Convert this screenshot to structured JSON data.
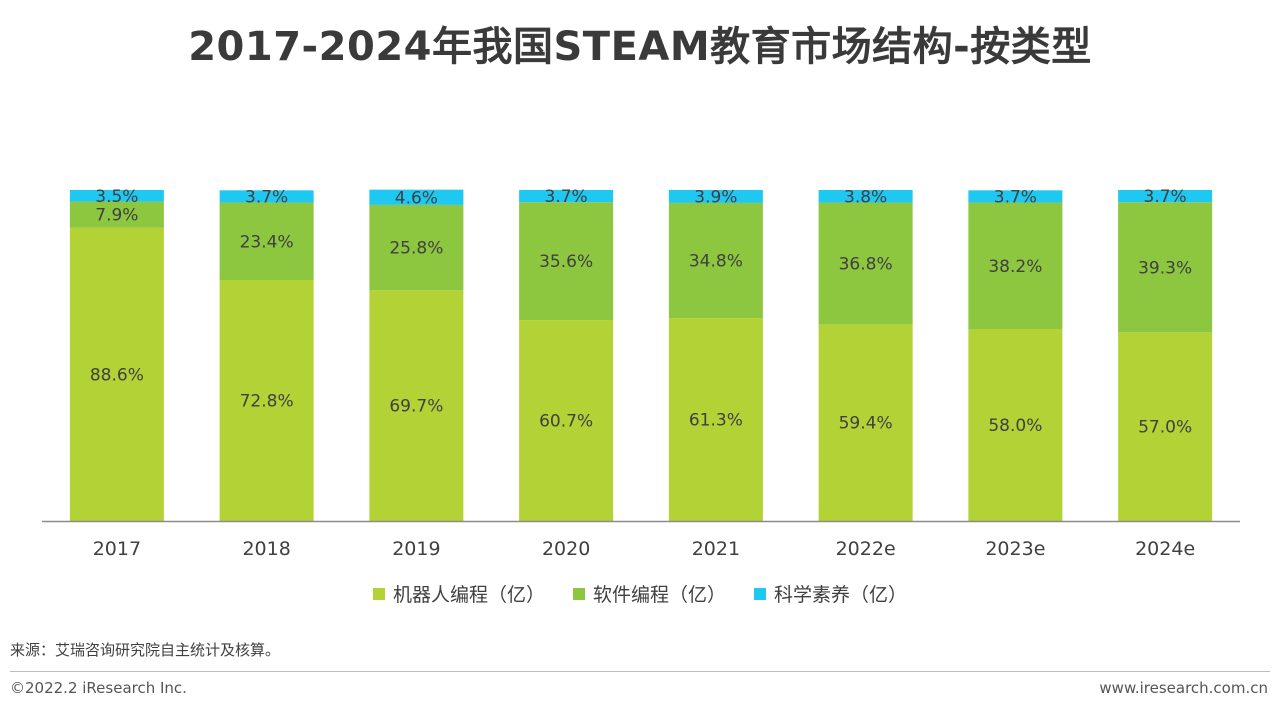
{
  "page": {
    "title": "2017-2024年我国STEAM教育市场结构-按类型",
    "source": "来源：艾瑞咨询研究院自主统计及核算。",
    "copyright": "©2022.2 iResearch Inc.",
    "website": "www.iresearch.com.cn"
  },
  "chart_data": {
    "type": "bar",
    "stacked": true,
    "percent_stacked": true,
    "title": "2017-2024年我国STEAM教育市场结构-按类型",
    "categories": [
      "2017",
      "2018",
      "2019",
      "2020",
      "2021",
      "2022e",
      "2023e",
      "2024e"
    ],
    "series": [
      {
        "name": "机器人编程（亿）",
        "color": "#b2d235",
        "values": [
          88.6,
          72.8,
          69.7,
          60.7,
          61.3,
          59.4,
          58.0,
          57.0
        ],
        "labels": [
          "88.6%",
          "72.8%",
          "69.7%",
          "60.7%",
          "61.3%",
          "59.4%",
          "58.0%",
          "57.0%"
        ]
      },
      {
        "name": "软件编程（亿）",
        "color": "#8dc63f",
        "values": [
          7.9,
          23.4,
          25.8,
          35.6,
          34.8,
          36.8,
          38.2,
          39.3
        ],
        "labels": [
          "7.9%",
          "23.4%",
          "25.8%",
          "35.6%",
          "34.8%",
          "36.8%",
          "38.2%",
          "39.3%"
        ]
      },
      {
        "name": "科学素养（亿）",
        "color": "#1ec8f0",
        "values": [
          3.5,
          3.7,
          4.6,
          3.7,
          3.9,
          3.8,
          3.7,
          3.7
        ],
        "labels": [
          "3.5%",
          "3.7%",
          "4.6%",
          "3.7%",
          "3.9%",
          "3.8%",
          "3.7%",
          "3.7%"
        ]
      }
    ],
    "ylim": [
      0,
      100
    ],
    "grid": false,
    "legend_position": "bottom"
  }
}
